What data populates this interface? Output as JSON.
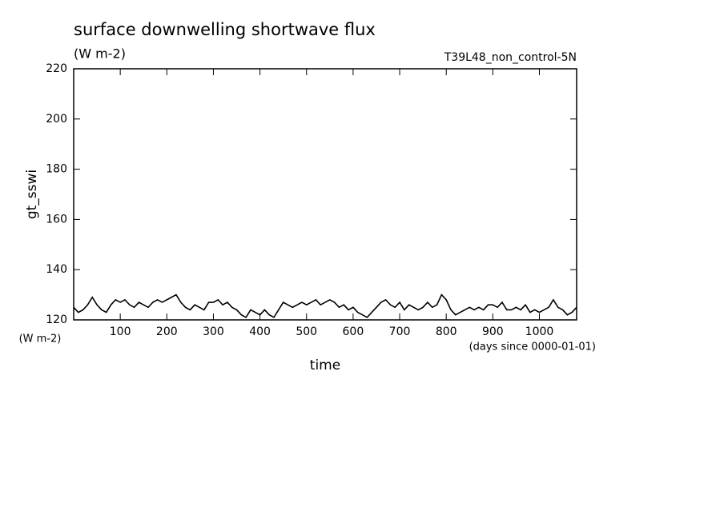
{
  "chart_data": {
    "type": "line",
    "title": "surface downwelling shortwave flux",
    "subtitle": "(W m-2)",
    "annotation": "T39L48_non_control-5N",
    "y_label": "gt_sswi",
    "y_unit": "(W m-2)",
    "x_label": "time",
    "x_unit": "(days since 0000-01-01)",
    "xlim": [
      0,
      1080
    ],
    "xticks": [
      100,
      200,
      300,
      400,
      500,
      600,
      700,
      800,
      900,
      1000
    ],
    "ylim": [
      120,
      220
    ],
    "yticks": [
      120,
      140,
      160,
      180,
      200,
      220
    ],
    "grid": false,
    "x": [
      0,
      10,
      20,
      30,
      40,
      50,
      60,
      70,
      80,
      90,
      100,
      110,
      120,
      130,
      140,
      150,
      160,
      170,
      180,
      190,
      200,
      210,
      220,
      230,
      240,
      250,
      260,
      270,
      280,
      290,
      300,
      310,
      320,
      330,
      340,
      350,
      360,
      370,
      380,
      390,
      400,
      410,
      420,
      430,
      440,
      450,
      460,
      470,
      480,
      490,
      500,
      510,
      520,
      530,
      540,
      550,
      560,
      570,
      580,
      590,
      600,
      610,
      620,
      630,
      640,
      650,
      660,
      670,
      680,
      690,
      700,
      710,
      720,
      730,
      740,
      750,
      760,
      770,
      780,
      790,
      800,
      810,
      820,
      830,
      840,
      850,
      860,
      870,
      880,
      890,
      900,
      910,
      920,
      930,
      940,
      950,
      960,
      970,
      980,
      990,
      1000,
      1010,
      1020,
      1030,
      1040,
      1050,
      1060,
      1070,
      1080
    ],
    "series": [
      {
        "name": "gt_sswi",
        "color": "#000000",
        "values": [
          125,
          123,
          124,
          126,
          129,
          126,
          124,
          123,
          126,
          128,
          127,
          128,
          126,
          125,
          127,
          126,
          125,
          127,
          128,
          127,
          128,
          129,
          130,
          127,
          125,
          124,
          126,
          125,
          124,
          127,
          127,
          128,
          126,
          127,
          125,
          124,
          122,
          121,
          124,
          123,
          122,
          124,
          122,
          121,
          124,
          127,
          126,
          125,
          126,
          127,
          126,
          127,
          128,
          126,
          127,
          128,
          127,
          125,
          126,
          124,
          125,
          123,
          122,
          121,
          123,
          125,
          127,
          128,
          126,
          125,
          127,
          124,
          126,
          125,
          124,
          125,
          127,
          125,
          126,
          130,
          128,
          124,
          122,
          123,
          124,
          125,
          124,
          125,
          124,
          126,
          126,
          125,
          127,
          124,
          124,
          125,
          124,
          126,
          123,
          124,
          123,
          124,
          125,
          128,
          125,
          124,
          122,
          123,
          125
        ]
      }
    ]
  }
}
